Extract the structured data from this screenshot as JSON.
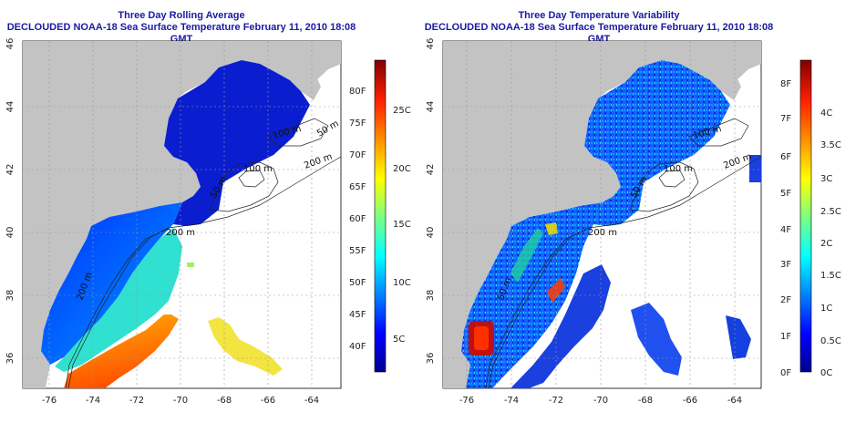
{
  "panels": [
    {
      "title": "Three Day Rolling Average",
      "subtitle": "DECLOUDED NOAA-18 Sea Surface Temperature February 11, 2010 18:08 GMT",
      "x_ticks": [
        "-76",
        "-74",
        "-72",
        "-70",
        "-68",
        "-66",
        "-64"
      ],
      "y_ticks": [
        "36",
        "38",
        "40",
        "42",
        "44",
        "46"
      ],
      "contour_labels": [
        "100 m",
        "200 m",
        "100 m",
        "50 m",
        "200 m",
        "200 m",
        "50 m"
      ],
      "colorbar_f": [
        "80F",
        "75F",
        "70F",
        "65F",
        "60F",
        "55F",
        "50F",
        "45F",
        "40F"
      ],
      "colorbar_c": [
        "25C",
        "20C",
        "15C",
        "10C",
        "5C"
      ]
    },
    {
      "title": "Three Day Temperature Variability",
      "subtitle": "DECLOUDED NOAA-18 Sea Surface Temperature February 11, 2010 18:08 GMT",
      "x_ticks": [
        "-76",
        "-74",
        "-72",
        "-70",
        "-68",
        "-66",
        "-64"
      ],
      "y_ticks": [
        "36",
        "38",
        "40",
        "42",
        "44",
        "46"
      ],
      "contour_labels": [
        "100 m",
        "200 m",
        "100 m",
        "50 m",
        "200 m",
        "50 m"
      ],
      "colorbar_f": [
        "8F",
        "7F",
        "6F",
        "5F",
        "4F",
        "3F",
        "2F",
        "1F",
        "0F"
      ],
      "colorbar_c": [
        "4C",
        "3.5C",
        "3C",
        "2.5C",
        "2C",
        "1.5C",
        "1C",
        "0.5C",
        "0C"
      ]
    }
  ],
  "colors": {
    "land": "#c3c3c3",
    "title": "#1a1aa6",
    "colormap": [
      "#00008f",
      "#0000ff",
      "#0080ff",
      "#00ffff",
      "#80ff80",
      "#ffff00",
      "#ff8000",
      "#ff0000",
      "#800000"
    ]
  }
}
